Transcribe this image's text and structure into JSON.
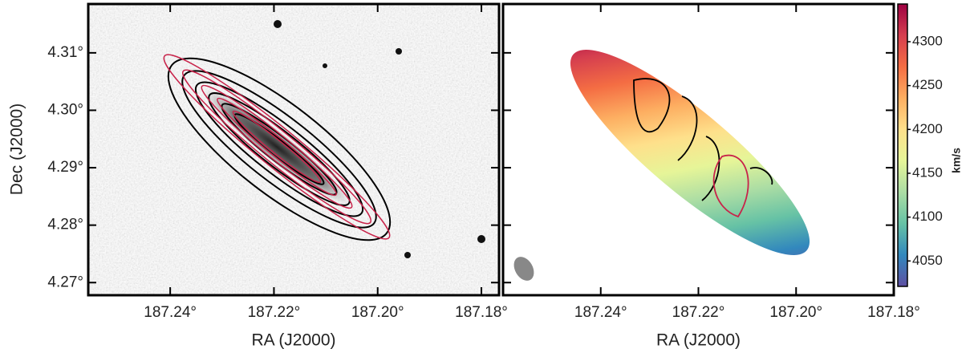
{
  "chart_data": [
    {
      "type": "image",
      "xlabel": "RA (J2000)",
      "ylabel": "Dec (J2000)",
      "xlim": [
        187.2558,
        187.1766
      ],
      "ylim": [
        4.2678,
        4.3185
      ],
      "xticks": [
        {
          "value": 187.24,
          "label": "187.24°"
        },
        {
          "value": 187.22,
          "label": "187.22°"
        },
        {
          "value": 187.2,
          "label": "187.20°"
        },
        {
          "value": 187.18,
          "label": "187.18°"
        }
      ],
      "yticks": [
        {
          "value": 4.27,
          "label": "4.27°"
        },
        {
          "value": 4.28,
          "label": "4.28°"
        },
        {
          "value": 4.29,
          "label": "4.29°"
        },
        {
          "value": 4.3,
          "label": "4.30°"
        },
        {
          "value": 4.31,
          "label": "4.31°"
        }
      ],
      "contour_colors": [
        "#000000",
        "#c8234a"
      ]
    },
    {
      "type": "velocity-map",
      "xlabel": "RA (J2000)",
      "xlim": [
        187.26,
        187.18
      ],
      "ylim": [
        4.2678,
        4.3185
      ],
      "xticks": [
        {
          "value": 187.24,
          "label": "187.24°"
        },
        {
          "value": 187.22,
          "label": "187.22°"
        },
        {
          "value": 187.2,
          "label": "187.20°"
        },
        {
          "value": 187.18,
          "label": "187.18°"
        }
      ],
      "yticks": [
        4.27,
        4.28,
        4.29,
        4.3,
        4.31
      ],
      "colorbar": {
        "label": "km/s",
        "lim": [
          4021,
          4343
        ],
        "ticks": [
          4050,
          4100,
          4150,
          4200,
          4250,
          4300
        ],
        "colormap": [
          "#5e4fa2",
          "#3288bd",
          "#66c2a5",
          "#abdda4",
          "#e6f598",
          "#fee08b",
          "#fdae61",
          "#f46d43",
          "#d53e4f",
          "#9e0142"
        ]
      }
    }
  ]
}
